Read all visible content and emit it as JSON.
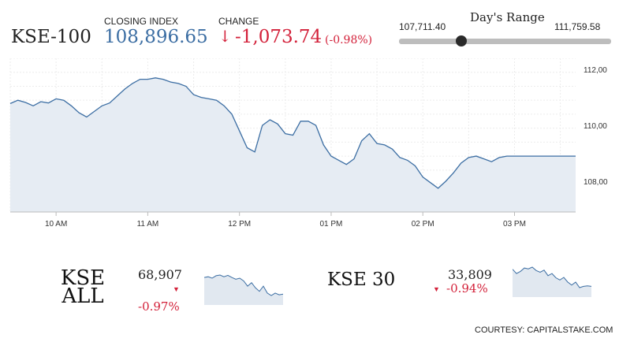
{
  "header": {
    "index_name": "KSE-100",
    "closing_label": "CLOSING INDEX",
    "closing_value": "108,896.65",
    "change_label": "CHANGE",
    "change_arrow": "↓",
    "change_value": "-1,073.74",
    "change_pct": "(-0.98%)"
  },
  "days_range": {
    "title": "Day's Range",
    "low": "107,711.40",
    "high": "111,759.58",
    "current_fraction": 0.293
  },
  "colors": {
    "line": "#3c6ea3",
    "fill": "#e6ecf3",
    "up": "#3c6ea3",
    "down": "#d3213a"
  },
  "chart_data": [
    {
      "type": "area",
      "title": "KSE-100",
      "x": [
        "09:30",
        "09:35",
        "09:40",
        "09:45",
        "09:50",
        "09:55",
        "10:00",
        "10:05",
        "10:10",
        "10:15",
        "10:20",
        "10:25",
        "10:30",
        "10:35",
        "10:40",
        "10:45",
        "10:50",
        "10:55",
        "11:00",
        "11:05",
        "11:10",
        "11:15",
        "11:20",
        "11:25",
        "11:30",
        "11:35",
        "11:40",
        "11:45",
        "11:50",
        "11:55",
        "12:00",
        "12:05",
        "12:10",
        "12:15",
        "12:20",
        "12:25",
        "12:30",
        "12:35",
        "12:40",
        "12:45",
        "12:50",
        "12:55",
        "13:00",
        "13:05",
        "13:10",
        "13:15",
        "13:20",
        "13:25",
        "13:30",
        "13:35",
        "13:40",
        "13:45",
        "13:50",
        "13:55",
        "14:00",
        "14:05",
        "14:10",
        "14:15",
        "14:20",
        "14:25",
        "14:30",
        "14:35",
        "14:40",
        "14:45",
        "14:50",
        "14:55",
        "15:00",
        "15:05",
        "15:10",
        "15:15",
        "15:20",
        "15:25",
        "15:30",
        "15:35",
        "15:40"
      ],
      "y": [
        110780,
        110900,
        110820,
        110700,
        110850,
        110800,
        110950,
        110900,
        110700,
        110450,
        110300,
        110500,
        110700,
        110800,
        111050,
        111300,
        111500,
        111650,
        111650,
        111700,
        111650,
        111550,
        111500,
        111400,
        111100,
        111000,
        110950,
        110900,
        110700,
        110400,
        109800,
        109200,
        109050,
        110000,
        110200,
        110050,
        109700,
        109650,
        110150,
        110150,
        110000,
        109300,
        108900,
        108750,
        108600,
        108800,
        109450,
        109700,
        109350,
        109300,
        109150,
        108850,
        108750,
        108550,
        108150,
        107950,
        107750,
        108000,
        108300,
        108650,
        108850,
        108900,
        108800,
        108700,
        108850,
        108900,
        108900,
        108900,
        108900,
        108900,
        108900,
        108900,
        108900,
        108900,
        108900
      ],
      "xticks": [
        "10 AM",
        "11 AM",
        "12 PM",
        "01 PM",
        "02 PM",
        "03 PM"
      ],
      "ytick_labels": [
        "108,00",
        "110,00",
        "112,00"
      ],
      "ylim": [
        106900,
        112400
      ],
      "grid": true
    },
    {
      "type": "area",
      "title": "KSE ALL",
      "y": [
        69400,
        69420,
        69380,
        69450,
        69470,
        69420,
        69460,
        69400,
        69350,
        69380,
        69300,
        69150,
        69250,
        69100,
        69000,
        69150,
        68950,
        68880,
        68950,
        68900,
        68920
      ]
    },
    {
      "type": "area",
      "title": "KSE 30",
      "y": [
        34250,
        34150,
        34200,
        34280,
        34260,
        34300,
        34220,
        34180,
        34230,
        34100,
        34150,
        34050,
        34000,
        34060,
        33950,
        33880,
        33950,
        33820,
        33850,
        33860,
        33850
      ]
    }
  ],
  "kse_all": {
    "name": "KSE ALL",
    "value": "68,907",
    "arrow": "▼",
    "pct": "-0.97%"
  },
  "kse30": {
    "name": "KSE 30",
    "value": "33,809",
    "arrow": "▼",
    "pct": "-0.94%"
  },
  "footer": {
    "courtesy": "COURTESY: CAPITALSTAKE.COM"
  }
}
